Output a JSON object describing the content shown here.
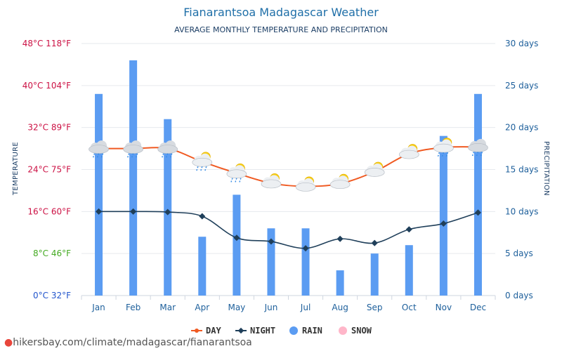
{
  "chart_data": {
    "type": "bar+line",
    "title": "Fianarantsoa Madagascar Weather",
    "subtitle": "AVERAGE MONTHLY TEMPERATURE AND PRECIPITATION",
    "categories": [
      "Jan",
      "Feb",
      "Mar",
      "Apr",
      "May",
      "Jun",
      "Jul",
      "Aug",
      "Sep",
      "Oct",
      "Nov",
      "Dec"
    ],
    "left_axis": {
      "label": "TEMPERATURE",
      "range_c": [
        0,
        48
      ],
      "ticks": [
        {
          "value": 0,
          "label": "0°C 32°F",
          "color": "#2255cc"
        },
        {
          "value": 8,
          "label": "8°C 46°F",
          "color": "#44aa22"
        },
        {
          "value": 16,
          "label": "16°C 60°F",
          "color": "#cc1144"
        },
        {
          "value": 24,
          "label": "24°C 75°F",
          "color": "#cc1144"
        },
        {
          "value": 32,
          "label": "32°C 89°F",
          "color": "#cc1144"
        },
        {
          "value": 40,
          "label": "40°C 104°F",
          "color": "#cc1144"
        },
        {
          "value": 48,
          "label": "48°C 118°F",
          "color": "#cc1144"
        }
      ]
    },
    "right_axis": {
      "label": "PRECIPITATION",
      "range_days": [
        0,
        30
      ],
      "ticks": [
        {
          "value": 0,
          "label": "0 days"
        },
        {
          "value": 5,
          "label": "5 days"
        },
        {
          "value": 10,
          "label": "10 days"
        },
        {
          "value": 15,
          "label": "15 days"
        },
        {
          "value": 20,
          "label": "20 days"
        },
        {
          "value": 25,
          "label": "25 days"
        },
        {
          "value": 30,
          "label": "30 days"
        }
      ]
    },
    "series": [
      {
        "name": "DAY",
        "kind": "line",
        "axis": "left",
        "color": "#f05a22",
        "values": [
          28,
          28,
          28,
          25.5,
          23.3,
          21.4,
          20.8,
          21.3,
          23.6,
          27,
          28.2,
          28.3
        ]
      },
      {
        "name": "NIGHT",
        "kind": "line",
        "axis": "left",
        "color": "#1f3f5a",
        "values": [
          16,
          16,
          15.9,
          15.1,
          11,
          10.3,
          9,
          10.8,
          10,
          12.6,
          13.7,
          15.8
        ]
      },
      {
        "name": "RAIN",
        "kind": "bar",
        "axis": "right",
        "color": "#5b9cf2",
        "values": [
          24,
          28,
          21,
          7,
          12,
          8,
          8,
          3,
          5,
          6,
          19,
          24
        ]
      },
      {
        "name": "SNOW",
        "kind": "bar",
        "axis": "right",
        "color": "#ffb6c9",
        "values": [
          0,
          0,
          0,
          0,
          0,
          0,
          0,
          0,
          0,
          0,
          0,
          0
        ]
      }
    ],
    "weather_icons": [
      "rain-cloud",
      "rain-cloud",
      "rain-cloud",
      "sun-cloud-rain",
      "sun-cloud-rain",
      "sun-cloud",
      "sun-cloud",
      "sun-cloud",
      "sun-cloud",
      "sun-cloud",
      "sun-cloud-rain",
      "rain-cloud"
    ],
    "grid": true,
    "legend_position": "bottom"
  },
  "footer": {
    "text": "hikersbay.com/climate/madagascar/fianarantsoa",
    "icon": "location-pin-icon"
  }
}
